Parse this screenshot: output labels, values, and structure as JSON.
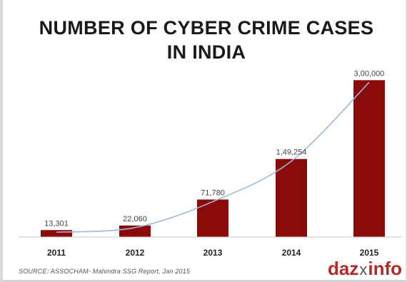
{
  "chart_data": {
    "type": "bar",
    "title_lines": [
      "NUMBER OF CYBER CRIME CASES",
      "IN INDIA"
    ],
    "categories": [
      "2011",
      "2012",
      "2013",
      "2014",
      "2015"
    ],
    "values": [
      13301,
      22060,
      71780,
      149254,
      300000
    ],
    "value_labels": [
      "13,301",
      "22,060",
      "71,780",
      "1,49,254",
      "3,00,000"
    ],
    "ylim": [
      0,
      310000
    ],
    "grid": false,
    "legend": "none",
    "trendline": true,
    "colors": {
      "bar": "#8b0a0a",
      "trend": "#9db8d8",
      "axis": "#c8c8c8"
    }
  },
  "source_note": "SOURCE: ASSOCHAM- Mahindra SSG Report, Jan 2015",
  "logo": {
    "part1": "daz",
    "part2": "x",
    "part3": "info"
  }
}
